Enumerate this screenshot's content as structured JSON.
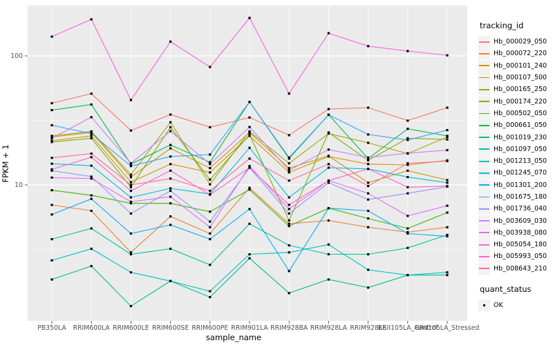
{
  "figure": {
    "background": "#FFFFFF",
    "panel_background": "#EBEBEB",
    "grid_color": "#FFFFFF",
    "tick_color": "#333333",
    "tick_label_color": "#4D4D4D",
    "point_color": "#000000"
  },
  "axes": {
    "x_label": "sample_name",
    "y_label": "FPKM + 1",
    "y_tick_labels": [
      "100",
      "10"
    ]
  },
  "legend": {
    "tracking_title": "tracking_id",
    "quant_title": "quant_status",
    "quant_items": [
      {
        "label": "OK",
        "marker": "black-square"
      }
    ]
  },
  "chart_data": {
    "type": "line",
    "title": "",
    "xlabel": "sample_name",
    "ylabel": "FPKM + 1",
    "y_scale": "log10",
    "y_ticks": [
      100,
      10
    ],
    "y_minor_ticks": [
      31.62,
      3.162
    ],
    "ylim": [
      0.9,
      240
    ],
    "grid": true,
    "legend_position": "right",
    "marker": "black-square",
    "categories": [
      "PB350LA",
      "RRIM600LA",
      "RRIM600LE",
      "RRIM600SE",
      "RRIM600PE",
      "RRIM901LA",
      "RRIM928BA",
      "RRIM928LA",
      "RRIM928LE",
      "RRII105LA_Control",
      "RRII105LA_Stressed"
    ],
    "series": [
      {
        "name": "Hb_000029_050",
        "color": "#F8766D",
        "values": [
          43,
          51,
          26.4,
          35.1,
          28,
          33.3,
          24.3,
          38.7,
          39.7,
          31.5,
          39.7
        ]
      },
      {
        "name": "Hb_000072_220",
        "color": "#EA8331",
        "values": [
          7.0,
          6.3,
          3.0,
          5.7,
          4.2,
          9.5,
          5.0,
          5.3,
          4.7,
          4.3,
          4.7
        ]
      },
      {
        "name": "Hb_000101_240",
        "color": "#D89000",
        "values": [
          22,
          24,
          10.5,
          14.5,
          12.5,
          24,
          12.5,
          16.6,
          14.5,
          14.3,
          15.5
        ]
      },
      {
        "name": "Hb_000107_500",
        "color": "#C09B00",
        "values": [
          23.5,
          25.5,
          11.5,
          19.2,
          13.5,
          25.5,
          13.5,
          16.8,
          10.4,
          12.9,
          10.9
        ]
      },
      {
        "name": "Hb_000165_250",
        "color": "#A3A500",
        "values": [
          24,
          26,
          12,
          30.6,
          10.1,
          26,
          14.7,
          25,
          21.2,
          17.5,
          23.5
        ]
      },
      {
        "name": "Hb_000174_220",
        "color": "#7CAE00",
        "values": [
          21.5,
          23,
          9.6,
          28,
          11,
          24.5,
          5.3,
          25.5,
          15.5,
          23,
          22.5
        ]
      },
      {
        "name": "Hb_000502_050",
        "color": "#39B600",
        "values": [
          9.1,
          8.3,
          7.2,
          7.2,
          6.2,
          9.2,
          4.8,
          6.6,
          5.5,
          4.6,
          6.1
        ]
      },
      {
        "name": "Hb_000661_050",
        "color": "#00BB4E",
        "values": [
          38,
          42,
          14.5,
          20.4,
          15,
          44,
          16,
          35,
          16,
          27.2,
          24
        ]
      },
      {
        "name": "Hb_001019_230",
        "color": "#00BF7D",
        "values": [
          1.85,
          2.35,
          1.15,
          1.8,
          1.35,
          2.7,
          1.45,
          1.85,
          1.6,
          2.0,
          2.0
        ]
      },
      {
        "name": "Hb_001097_050",
        "color": "#00C1A3",
        "values": [
          3.8,
          4.6,
          2.9,
          3.2,
          2.4,
          5.0,
          3.4,
          2.9,
          2.9,
          3.25,
          4.1
        ]
      },
      {
        "name": "Hb_001213_050",
        "color": "#00BFC4",
        "values": [
          2.6,
          3.2,
          2.1,
          1.8,
          1.5,
          2.9,
          3.0,
          3.45,
          2.2,
          2.0,
          2.1
        ]
      },
      {
        "name": "Hb_001245_070",
        "color": "#00BAE0",
        "values": [
          14.6,
          14.1,
          8.0,
          9.4,
          8.5,
          19.4,
          8.0,
          13.6,
          13.3,
          11.5,
          10.4
        ]
      },
      {
        "name": "Hb_001301_200",
        "color": "#00B0F6",
        "values": [
          5.9,
          7.8,
          4.2,
          4.9,
          3.8,
          6.5,
          2.15,
          6.6,
          6.3,
          4.2,
          4.0
        ]
      },
      {
        "name": "Hb_001675_180",
        "color": "#35A2FF",
        "values": [
          29,
          25,
          14,
          16.6,
          17.2,
          44,
          16.3,
          35,
          24.6,
          22.3,
          26.6
        ]
      },
      {
        "name": "Hb_001736_040",
        "color": "#9590FF",
        "values": [
          12.9,
          11.6,
          6.0,
          9.0,
          5.2,
          13.6,
          6.0,
          10.4,
          7.7,
          8.6,
          9.7
        ]
      },
      {
        "name": "Hb_003609_030",
        "color": "#C77CFF",
        "values": [
          23,
          33.5,
          14.7,
          26.1,
          14.5,
          28.1,
          13,
          18.8,
          16.3,
          17.6,
          18.6
        ]
      },
      {
        "name": "Hb_003938_080",
        "color": "#E76BF3",
        "values": [
          11.4,
          11.2,
          7.4,
          8.1,
          4.7,
          14,
          6.5,
          10.8,
          8.6,
          5.75,
          6.9
        ]
      },
      {
        "name": "Hb_005054_180",
        "color": "#FA62DB",
        "values": [
          141,
          192,
          45.5,
          129,
          82,
          197,
          51,
          150,
          119,
          109,
          101
        ]
      },
      {
        "name": "Hb_005993_050",
        "color": "#FF61CC",
        "values": [
          13.2,
          16.4,
          9.0,
          12.9,
          8.4,
          13.6,
          7.0,
          10.8,
          13.3,
          9.6,
          9.8
        ]
      },
      {
        "name": "Hb_008643_210",
        "color": "#FF6A98",
        "values": [
          16.2,
          17.5,
          10,
          11.2,
          9.0,
          16,
          10.8,
          14.5,
          9.8,
          14.7,
          15.3
        ]
      }
    ]
  }
}
